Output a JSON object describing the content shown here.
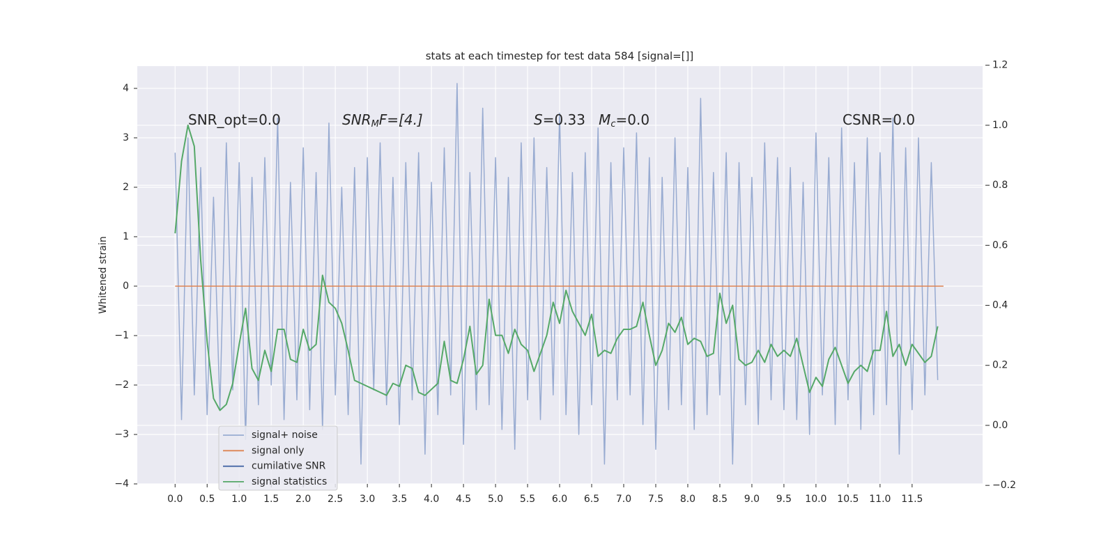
{
  "chart_data": {
    "type": "line",
    "title": "stats at each timestep for test data 584 [signal=[]]",
    "y_label": "Whitened strain",
    "annotations": [
      [
        "SNR_opt=0.0"
      ],
      [
        "SNR",
        "M",
        "F=[4.]"
      ],
      [
        "S",
        "=0.33   ",
        "M",
        "c",
        "=0.0"
      ],
      [
        "CSNR=0.0"
      ]
    ],
    "xlim": [
      -0.59,
      12.6
    ],
    "xticks": [
      {
        "value": 0,
        "label": "0.0"
      },
      0.5,
      {
        "value": 1,
        "label": "1.0"
      },
      1.5,
      {
        "value": 2,
        "label": "2.0"
      },
      2.5,
      {
        "value": 3,
        "label": "3.0"
      },
      3.5,
      {
        "value": 4,
        "label": "4.0"
      },
      4.5,
      {
        "value": 5,
        "label": "5.0"
      },
      5.5,
      {
        "value": 6,
        "label": "6.0"
      },
      6.5,
      {
        "value": 7,
        "label": "7.0"
      },
      7.5,
      {
        "value": 8,
        "label": "8.0"
      },
      8.5,
      {
        "value": 9,
        "label": "9.0"
      },
      9.5,
      {
        "value": 10,
        "label": "10.0"
      },
      10.5,
      {
        "value": 11,
        "label": "11.0"
      },
      11.5
    ],
    "ylim": [
      -4.0,
      4.45
    ],
    "yticks": [
      {
        "value": -4,
        "label": "−4"
      },
      {
        "value": -3,
        "label": "−3"
      },
      {
        "value": -2,
        "label": "−2"
      },
      {
        "value": -1,
        "label": "−1"
      },
      0,
      1,
      2,
      3,
      4
    ],
    "y2lim": [
      -0.195,
      1.197
    ],
    "y2ticks": [
      {
        "value": -0.2,
        "label": "−0.2"
      },
      {
        "value": 0,
        "label": "0.0"
      },
      0.2,
      0.4,
      0.6,
      0.8,
      {
        "value": 1,
        "label": "1.0"
      },
      1.2
    ],
    "grid": true,
    "legend": "lower left",
    "x": [
      0,
      0.1,
      0.2,
      0.3,
      0.4,
      0.5,
      0.6,
      0.7,
      0.8,
      0.9,
      1,
      1.1,
      1.2,
      1.3,
      1.4,
      1.5,
      1.6,
      1.7,
      1.8,
      1.9,
      2,
      2.1,
      2.2,
      2.3,
      2.4,
      2.5,
      2.6,
      2.7,
      2.8,
      2.9,
      3,
      3.1,
      3.2,
      3.3,
      3.4,
      3.5,
      3.6,
      3.7,
      3.8,
      3.9,
      4,
      4.1,
      4.2,
      4.3,
      4.4,
      4.5,
      4.6,
      4.7,
      4.8,
      4.9,
      5,
      5.1,
      5.2,
      5.3,
      5.4,
      5.5,
      5.6,
      5.7,
      5.8,
      5.9,
      6,
      6.1,
      6.2,
      6.3,
      6.4,
      6.5,
      6.6,
      6.7,
      6.8,
      6.9,
      7,
      7.1,
      7.2,
      7.3,
      7.4,
      7.5,
      7.6,
      7.7,
      7.8,
      7.9,
      8,
      8.1,
      8.2,
      8.3,
      8.4,
      8.5,
      8.6,
      8.7,
      8.8,
      8.9,
      9,
      9.1,
      9.2,
      9.3,
      9.4,
      9.5,
      9.6,
      9.7,
      9.8,
      9.9,
      10,
      10.1,
      10.2,
      10.3,
      10.4,
      10.5,
      10.6,
      10.7,
      10.8,
      10.9,
      11,
      11.1,
      11.2,
      11.3,
      11.4,
      11.5,
      11.6,
      11.7,
      11.8,
      11.9
    ],
    "series": [
      {
        "name": "signal+ noise",
        "color": "#98abd1",
        "values": [
          2.7,
          -2.7,
          3.0,
          -2.2,
          2.4,
          -2.6,
          1.8,
          -2.5,
          2.9,
          -2.1,
          2.5,
          -3.1,
          2.2,
          -2.4,
          2.6,
          -2.0,
          3.4,
          -2.7,
          2.1,
          -2.3,
          2.8,
          -2.5,
          2.3,
          -2.9,
          3.3,
          -2.2,
          2.0,
          -2.6,
          2.4,
          -3.6,
          2.6,
          -2.1,
          2.9,
          -2.4,
          2.2,
          -2.8,
          2.5,
          -2.3,
          2.7,
          -3.4,
          2.1,
          -2.6,
          2.8,
          -2.2,
          4.1,
          -3.2,
          2.3,
          -2.5,
          3.6,
          -2.4,
          2.6,
          -2.9,
          2.2,
          -3.3,
          2.9,
          -2.3,
          3.0,
          -2.7,
          2.4,
          -2.2,
          3.5,
          -2.6,
          2.3,
          -3.0,
          2.7,
          -2.4,
          3.2,
          -3.6,
          2.5,
          -2.3,
          2.8,
          -2.2,
          3.1,
          -2.8,
          2.6,
          -3.3,
          2.2,
          -2.5,
          3.0,
          -2.4,
          2.4,
          -2.9,
          3.8,
          -2.6,
          2.3,
          -2.2,
          2.7,
          -3.6,
          2.5,
          -2.4,
          2.2,
          -2.8,
          2.9,
          -2.3,
          2.6,
          -2.5,
          2.4,
          -2.7,
          2.1,
          -3.0,
          3.1,
          -2.2,
          2.6,
          -2.8,
          3.2,
          -2.3,
          2.5,
          -2.9,
          3.0,
          -2.6,
          2.7,
          -2.4,
          3.4,
          -3.4,
          2.8,
          -2.5,
          3.0,
          -2.2,
          2.5,
          -1.9
        ]
      },
      {
        "name": "signal only",
        "color": "#dd8452",
        "x": [
          0,
          11.99
        ],
        "values": [
          0,
          0
        ]
      },
      {
        "name": "cumilative SNR",
        "color": "#3a5da0"
      },
      {
        "name": "signal statistics",
        "color": "#55a868",
        "axis": "y2",
        "values": [
          0.64,
          0.88,
          1.0,
          0.93,
          0.55,
          0.28,
          0.09,
          0.05,
          0.07,
          0.14,
          0.27,
          0.39,
          0.19,
          0.15,
          0.25,
          0.18,
          0.32,
          0.32,
          0.22,
          0.21,
          0.32,
          0.25,
          0.27,
          0.5,
          0.41,
          0.39,
          0.34,
          0.25,
          0.15,
          0.14,
          0.13,
          0.12,
          0.11,
          0.1,
          0.14,
          0.13,
          0.2,
          0.19,
          0.11,
          0.1,
          0.12,
          0.14,
          0.28,
          0.15,
          0.14,
          0.22,
          0.33,
          0.17,
          0.2,
          0.42,
          0.3,
          0.3,
          0.24,
          0.32,
          0.27,
          0.25,
          0.18,
          0.24,
          0.3,
          0.41,
          0.34,
          0.45,
          0.38,
          0.34,
          0.3,
          0.37,
          0.23,
          0.25,
          0.24,
          0.29,
          0.32,
          0.32,
          0.33,
          0.41,
          0.3,
          0.2,
          0.25,
          0.34,
          0.31,
          0.36,
          0.27,
          0.29,
          0.28,
          0.23,
          0.24,
          0.44,
          0.34,
          0.4,
          0.22,
          0.2,
          0.21,
          0.25,
          0.21,
          0.27,
          0.23,
          0.25,
          0.23,
          0.29,
          0.2,
          0.11,
          0.16,
          0.13,
          0.22,
          0.26,
          0.2,
          0.14,
          0.18,
          0.2,
          0.18,
          0.25,
          0.25,
          0.38,
          0.23,
          0.27,
          0.2,
          0.27,
          0.24,
          0.21,
          0.23,
          0.33
        ]
      }
    ]
  }
}
